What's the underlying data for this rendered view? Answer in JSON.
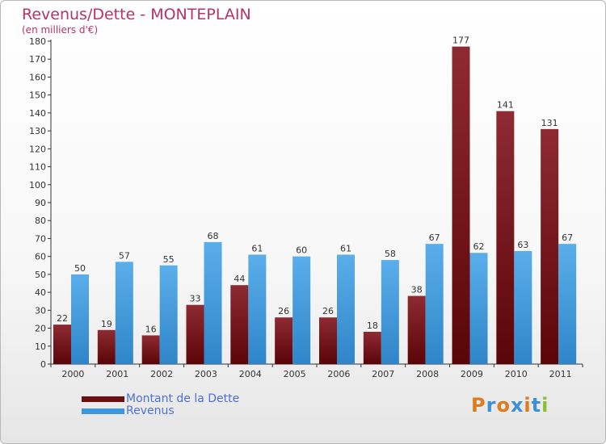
{
  "chart_data": {
    "type": "bar",
    "title": "Revenus/Dette - MONTEPLAIN",
    "subtitle": "(en milliers d'€)",
    "categories": [
      "2000",
      "2001",
      "2002",
      "2003",
      "2004",
      "2005",
      "2006",
      "2007",
      "2008",
      "2009",
      "2010",
      "2011"
    ],
    "series": [
      {
        "name": "Montant de la Dette",
        "color": "#7a1a1f",
        "values": [
          22,
          19,
          16,
          33,
          44,
          26,
          26,
          18,
          38,
          177,
          141,
          131
        ]
      },
      {
        "name": "Revenus",
        "color": "#3d97dd",
        "values": [
          50,
          57,
          55,
          68,
          61,
          60,
          61,
          58,
          67,
          62,
          63,
          67
        ]
      }
    ],
    "ylim": [
      0,
      180
    ],
    "yticks": [
      0,
      10,
      20,
      30,
      40,
      50,
      60,
      70,
      80,
      90,
      100,
      110,
      120,
      130,
      140,
      150,
      160,
      170,
      180
    ],
    "grid": false,
    "legend_position": "bottom-left"
  },
  "logo": {
    "text": "Proxiti",
    "letters": [
      {
        "ch": "P",
        "color": "#e07a1f"
      },
      {
        "ch": "r",
        "color": "#3d8fd6"
      },
      {
        "ch": "o",
        "color": "#e07a1f"
      },
      {
        "ch": "x",
        "color": "#3d8fd6"
      },
      {
        "ch": "i",
        "color": "#e07a1f"
      },
      {
        "ch": "t",
        "color": "#3d8fd6"
      },
      {
        "ch": "i",
        "color": "#8bbf2f"
      }
    ]
  }
}
